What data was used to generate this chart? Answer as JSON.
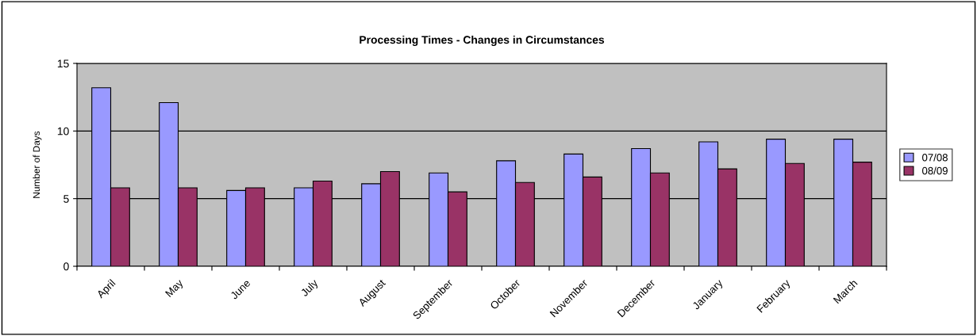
{
  "chart_data": {
    "type": "bar",
    "title": "Processing Times - Changes in Circumstances",
    "ylabel": "Number of Days",
    "categories": [
      "April",
      "May",
      "June",
      "July",
      "August",
      "September",
      "October",
      "November",
      "December",
      "January",
      "February",
      "March"
    ],
    "series": [
      {
        "name": "07/08",
        "color": "#9999ff",
        "values": [
          13.2,
          12.1,
          5.6,
          5.8,
          6.1,
          6.9,
          7.8,
          8.3,
          8.7,
          9.2,
          9.4,
          9.4
        ]
      },
      {
        "name": "08/09",
        "color": "#993366",
        "values": [
          5.8,
          5.8,
          5.8,
          6.3,
          7.0,
          5.5,
          6.2,
          6.6,
          6.9,
          7.2,
          7.6,
          7.7
        ]
      }
    ],
    "ylim": [
      0,
      15
    ],
    "yticks": [
      0,
      5,
      10,
      15
    ],
    "grid": "y",
    "legend": "right"
  }
}
